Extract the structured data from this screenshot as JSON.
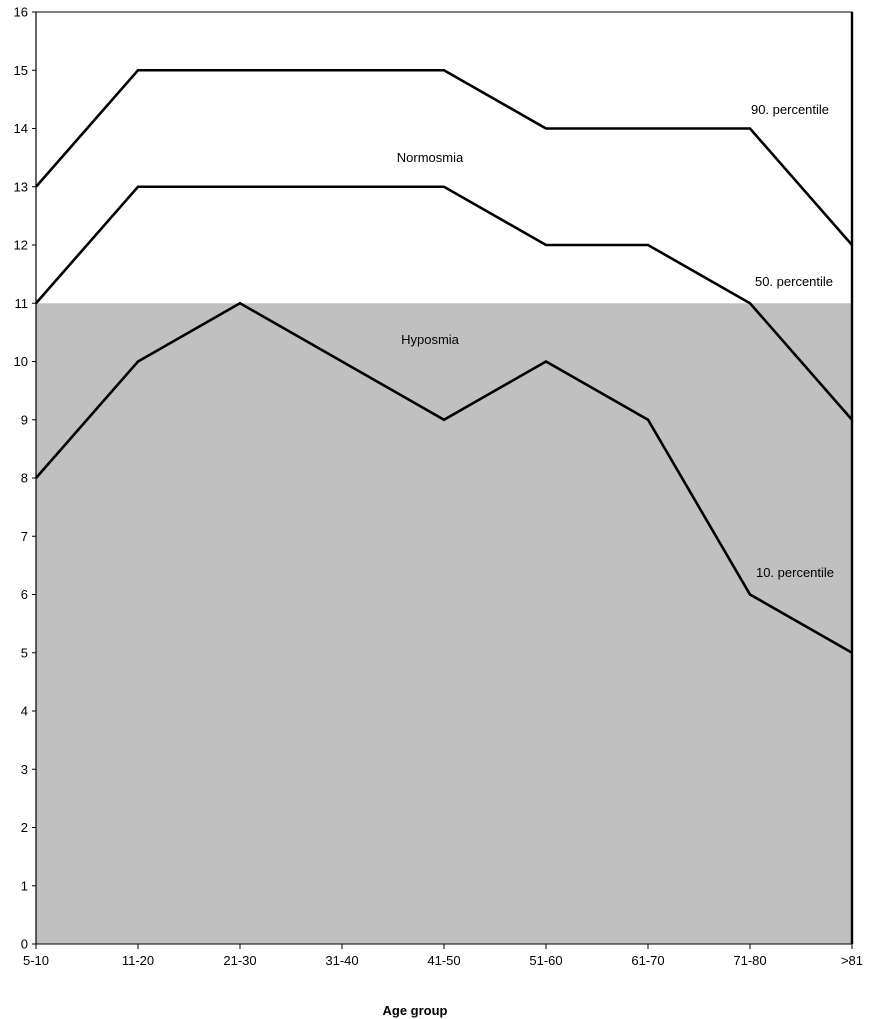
{
  "chart_data": {
    "type": "line",
    "title": "",
    "xlabel": "Age group",
    "ylabel": "",
    "categories": [
      "5-10",
      "11-20",
      "21-30",
      "31-40",
      "41-50",
      "51-60",
      "61-70",
      "71-80",
      ">81"
    ],
    "ylim": [
      0,
      16
    ],
    "yticks": [
      0,
      1,
      2,
      3,
      4,
      5,
      6,
      7,
      8,
      9,
      10,
      11,
      12,
      13,
      14,
      15,
      16
    ],
    "grid": false,
    "series": [
      {
        "name": "90. percentile",
        "values": [
          13,
          15,
          15,
          15,
          15,
          14,
          14,
          14,
          12
        ]
      },
      {
        "name": "50. percentile",
        "values": [
          11,
          13,
          13,
          13,
          13,
          12,
          12,
          11,
          9
        ]
      },
      {
        "name": "10. percentile",
        "values": [
          8,
          10,
          11,
          10,
          9,
          10,
          9,
          6,
          5
        ]
      }
    ],
    "regions": [
      {
        "name": "Normosmia",
        "from": 11,
        "to": 16,
        "color": "#ffffff"
      },
      {
        "name": "Hyposmia",
        "from": 0,
        "to": 11,
        "color": "#c0c0c0"
      }
    ],
    "line_color": "#000000"
  }
}
